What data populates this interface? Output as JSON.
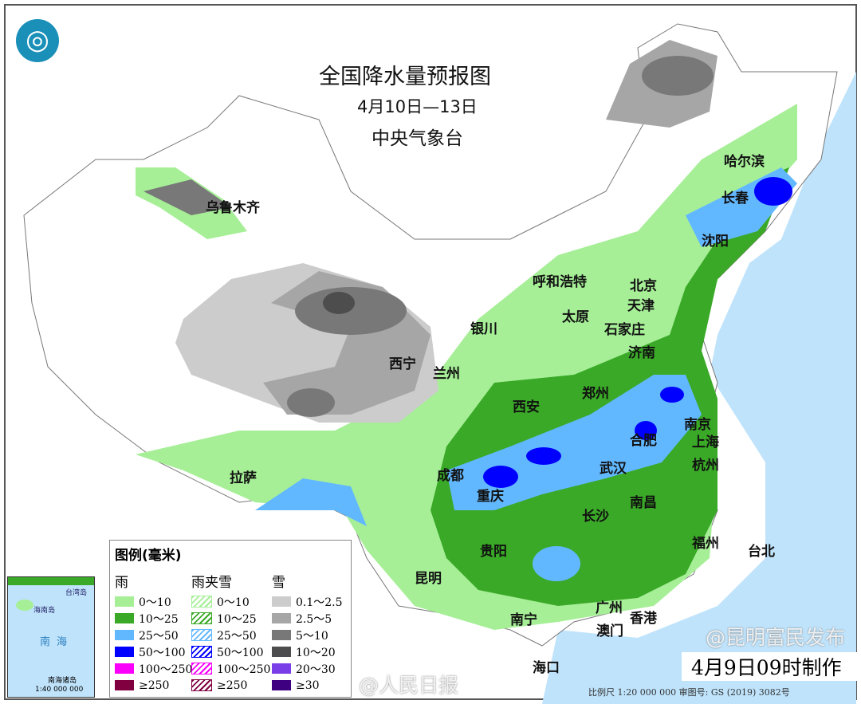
{
  "header": {
    "title": "全国降水量预报图",
    "date_range": "4月10日—13日",
    "agency": "中央气象台",
    "logo": "cma-logo"
  },
  "cities": [
    "乌鲁木齐",
    "哈尔滨",
    "长春",
    "沈阳",
    "呼和浩特",
    "北京",
    "天津",
    "太原",
    "石家庄",
    "银川",
    "西宁",
    "兰州",
    "济南",
    "郑州",
    "西安",
    "南京",
    "合肥",
    "上海",
    "成都",
    "武汉",
    "杭州",
    "重庆",
    "拉萨",
    "长沙",
    "南昌",
    "贵阳",
    "福州",
    "台北",
    "昆明",
    "广州",
    "香港",
    "澳门",
    "南宁",
    "海口"
  ],
  "legend": {
    "title": "图例(毫米)",
    "columns": [
      {
        "name": "雨",
        "items": [
          {
            "label": "0～10",
            "color": "#a6ef97"
          },
          {
            "label": "10～25",
            "color": "#3aa927"
          },
          {
            "label": "25～50",
            "color": "#62b8ff"
          },
          {
            "label": "50～100",
            "color": "#0000fe"
          },
          {
            "label": "100～250",
            "color": "#fa00fa"
          },
          {
            "label": "≥250",
            "color": "#800040"
          }
        ]
      },
      {
        "name": "雨夹雪",
        "hatched": true,
        "items": [
          {
            "label": "0～10",
            "color": "#a6ef97"
          },
          {
            "label": "10～25",
            "color": "#3aa927"
          },
          {
            "label": "25～50",
            "color": "#62b8ff"
          },
          {
            "label": "50～100",
            "color": "#0000fe"
          },
          {
            "label": "100～250",
            "color": "#fa00fa"
          },
          {
            "label": "≥250",
            "color": "#800040"
          }
        ]
      },
      {
        "name": "雪",
        "items": [
          {
            "label": "0.1～2.5",
            "color": "#cccccc"
          },
          {
            "label": "2.5～5",
            "color": "#a6a6a6"
          },
          {
            "label": "5～10",
            "color": "#787878"
          },
          {
            "label": "10～20",
            "color": "#4d4d4d"
          },
          {
            "label": "20～30",
            "color": "#7a3ee8"
          },
          {
            "label": "≥30",
            "color": "#3e0080"
          }
        ]
      }
    ]
  },
  "inset": {
    "sea": "南海",
    "islands": "南海诸岛",
    "scale": "1:40 000 000",
    "hainan": "海南岛",
    "taiwan": "台湾岛"
  },
  "footer": {
    "issued": "4月9日09时制作",
    "scale": "比例尺 1:20 000 000    审图号: GS (2019) 3082号",
    "watermark_left": "@人民日报",
    "watermark_right": "@昆明富民发布"
  }
}
